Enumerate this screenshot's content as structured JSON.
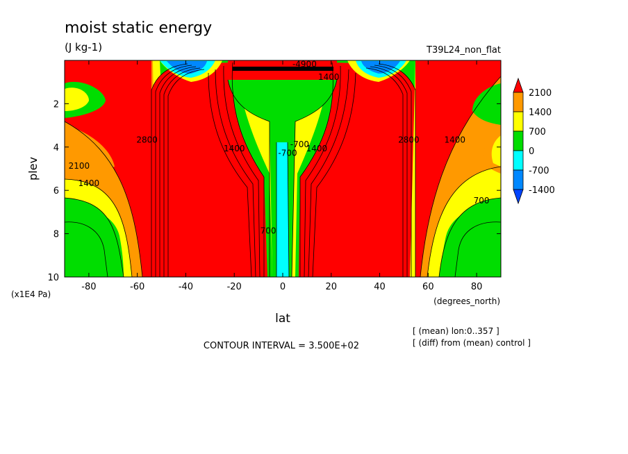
{
  "chart_data": {
    "type": "contour",
    "title": "moist static energy",
    "units": "(J kg-1)",
    "experiment": "T39L24_non_flat",
    "xlabel": "lat",
    "xunits": "(degrees_north)",
    "ylabel": "plev",
    "yunits": "(x1E4 Pa)",
    "xlim": [
      -90,
      90
    ],
    "ylim": [
      10,
      0
    ],
    "x_ticks": [
      -80,
      -60,
      -40,
      -20,
      0,
      20,
      40,
      60,
      80
    ],
    "y_ticks": [
      2,
      4,
      6,
      8,
      10
    ],
    "contour_interval_text": "CONTOUR INTERVAL = 3.500E+02",
    "notes": [
      "[ (mean) lon:0..357 ]",
      "[ (diff) from (mean) control ]"
    ],
    "colorbar": {
      "levels": [
        2100,
        1400,
        700,
        0,
        -700,
        -1400
      ],
      "colors": [
        "#ff0000",
        "#ff9900",
        "#ffff00",
        "#00dd00",
        "#00ffff",
        "#0088ff",
        "#0044ff"
      ]
    },
    "contour_labels": [
      {
        "text": "2100",
        "x": -84,
        "y": 5.0
      },
      {
        "text": "1400",
        "x": -80,
        "y": 5.8
      },
      {
        "text": "2800",
        "x": -56,
        "y": 3.8
      },
      {
        "text": "1400",
        "x": -20,
        "y": 4.2
      },
      {
        "text": "-700",
        "x": 2,
        "y": 4.4
      },
      {
        "text": "-700",
        "x": 7,
        "y": 4.0
      },
      {
        "text": "1400",
        "x": 14,
        "y": 4.2
      },
      {
        "text": "-4900",
        "x": 9,
        "y": 0.3
      },
      {
        "text": "1400",
        "x": 19,
        "y": 0.9
      },
      {
        "text": "2800",
        "x": 52,
        "y": 3.8
      },
      {
        "text": "1400",
        "x": 71,
        "y": 3.8
      },
      {
        "text": "700",
        "x": 82,
        "y": 6.6
      },
      {
        "text": "700",
        "x": -6,
        "y": 8.0
      }
    ]
  }
}
